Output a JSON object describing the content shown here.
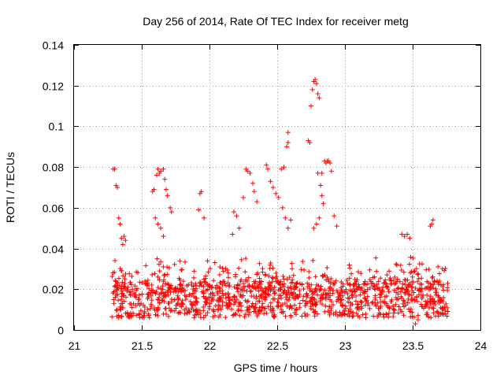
{
  "chart_data": {
    "type": "scatter",
    "title": "Day 256 of 2014, Rate Of TEC Index for receiver metg",
    "xlabel": "GPS time / hours",
    "ylabel": "ROTI / TECUs",
    "xlim": [
      21,
      24
    ],
    "ylim": [
      0,
      0.14
    ],
    "x_ticks": [
      21,
      21.5,
      22,
      22.5,
      23,
      23.5,
      24
    ],
    "x_tick_labels": [
      "21",
      "21.5",
      "22",
      "22.5",
      "23",
      "23.5",
      "24"
    ],
    "y_ticks": [
      0,
      0.02,
      0.04,
      0.06,
      0.08,
      0.1,
      0.12,
      0.14
    ],
    "y_tick_labels": [
      "0",
      "0.02",
      "0.04",
      "0.06",
      "0.08",
      "0.1",
      "0.12",
      "0.14"
    ],
    "grid": true,
    "marker": "+",
    "color": "#ff0000",
    "time_range": [
      21.28,
      21.75
    ],
    "series": [
      {
        "name": "ROTI",
        "points": [
          [
            21.29,
            0.079
          ],
          [
            21.3,
            0.079
          ],
          [
            21.31,
            0.071
          ],
          [
            21.32,
            0.07
          ],
          [
            21.33,
            0.055
          ],
          [
            21.34,
            0.052
          ],
          [
            21.35,
            0.045
          ],
          [
            21.36,
            0.042
          ],
          [
            21.37,
            0.046
          ],
          [
            21.38,
            0.044
          ],
          [
            21.58,
            0.068
          ],
          [
            21.59,
            0.069
          ],
          [
            21.61,
            0.076
          ],
          [
            21.62,
            0.079
          ],
          [
            21.63,
            0.077
          ],
          [
            21.64,
            0.078
          ],
          [
            21.66,
            0.079
          ],
          [
            21.67,
            0.074
          ],
          [
            21.68,
            0.069
          ],
          [
            21.69,
            0.066
          ],
          [
            21.71,
            0.06
          ],
          [
            21.72,
            0.058
          ],
          [
            21.6,
            0.055
          ],
          [
            21.62,
            0.052
          ],
          [
            21.64,
            0.05
          ],
          [
            21.66,
            0.046
          ],
          [
            21.93,
            0.067
          ],
          [
            21.94,
            0.068
          ],
          [
            21.92,
            0.059
          ],
          [
            21.96,
            0.055
          ],
          [
            22.18,
            0.058
          ],
          [
            22.2,
            0.056
          ],
          [
            22.22,
            0.05
          ],
          [
            22.17,
            0.047
          ],
          [
            22.25,
            0.065
          ],
          [
            22.27,
            0.079
          ],
          [
            22.28,
            0.078
          ],
          [
            22.3,
            0.077
          ],
          [
            22.32,
            0.072
          ],
          [
            22.33,
            0.068
          ],
          [
            22.35,
            0.063
          ],
          [
            22.42,
            0.081
          ],
          [
            22.43,
            0.079
          ],
          [
            22.45,
            0.073
          ],
          [
            22.47,
            0.07
          ],
          [
            22.49,
            0.067
          ],
          [
            22.51,
            0.065
          ],
          [
            22.53,
            0.079
          ],
          [
            22.55,
            0.08
          ],
          [
            22.57,
            0.09
          ],
          [
            22.58,
            0.092
          ],
          [
            22.58,
            0.097
          ],
          [
            22.54,
            0.06
          ],
          [
            22.56,
            0.055
          ],
          [
            22.58,
            0.05
          ],
          [
            22.6,
            0.054
          ],
          [
            22.73,
            0.093
          ],
          [
            22.74,
            0.092
          ],
          [
            22.75,
            0.11
          ],
          [
            22.76,
            0.118
          ],
          [
            22.77,
            0.122
          ],
          [
            22.78,
            0.123
          ],
          [
            22.79,
            0.121
          ],
          [
            22.8,
            0.116
          ],
          [
            22.81,
            0.114
          ],
          [
            22.8,
            0.077
          ],
          [
            22.82,
            0.071
          ],
          [
            22.83,
            0.066
          ],
          [
            22.84,
            0.062
          ],
          [
            22.83,
            0.077
          ],
          [
            22.85,
            0.083
          ],
          [
            22.86,
            0.082
          ],
          [
            22.87,
            0.083
          ],
          [
            22.88,
            0.083
          ],
          [
            22.89,
            0.082
          ],
          [
            22.9,
            0.078
          ],
          [
            22.77,
            0.05
          ],
          [
            22.79,
            0.052
          ],
          [
            22.81,
            0.055
          ],
          [
            22.92,
            0.056
          ],
          [
            22.94,
            0.051
          ],
          [
            23.42,
            0.047
          ],
          [
            23.44,
            0.046
          ],
          [
            23.46,
            0.047
          ],
          [
            23.48,
            0.045
          ],
          [
            23.63,
            0.051
          ],
          [
            23.64,
            0.052
          ],
          [
            23.65,
            0.054
          ],
          [
            23.52,
            0.003
          ],
          [
            23.54,
            0.005
          ]
        ]
      }
    ]
  }
}
